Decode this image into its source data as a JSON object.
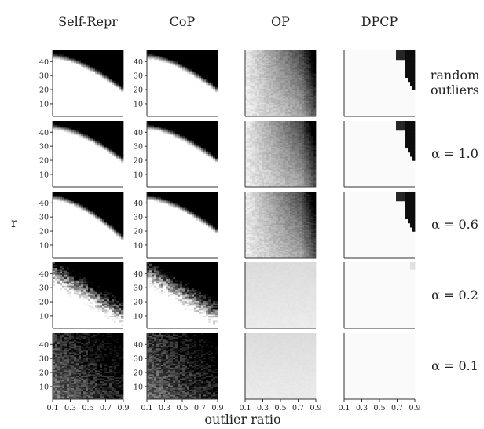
{
  "figure": {
    "xlabel": "outlier ratio",
    "ylabel": "r",
    "column_titles": [
      "Self-Repr",
      "CoP",
      "OP",
      "DPCP"
    ],
    "row_labels": [
      {
        "line1": "random",
        "line2": "outliers"
      },
      {
        "line1": "α = 1.0",
        "line2": ""
      },
      {
        "line1": "α = 0.6",
        "line2": ""
      },
      {
        "line1": "α = 0.2",
        "line2": ""
      },
      {
        "line1": "α = 0.1",
        "line2": ""
      }
    ],
    "x_ticks": [
      "0.1",
      "0.3",
      "0.5",
      "0.7",
      "0.9"
    ],
    "y_ticks": [
      "40",
      "30",
      "20",
      "10"
    ],
    "colors": {
      "low": "#ffffff",
      "high": "#000000"
    }
  },
  "chart_data": {
    "type": "heatmap",
    "grid": false,
    "x_axis": {
      "label": "outlier ratio",
      "range": [
        0.1,
        0.9
      ],
      "ticks": [
        0.1,
        0.3,
        0.5,
        0.7,
        0.9
      ]
    },
    "y_axis": {
      "label": "r",
      "range": [
        1,
        48
      ],
      "ticks": [
        10,
        20,
        30,
        40
      ]
    },
    "colormap": "white (low) to black (high)",
    "columns": [
      "Self-Repr",
      "CoP",
      "OP",
      "DPCP"
    ],
    "rows": [
      "random outliers",
      "α = 1.0",
      "α = 0.6",
      "α = 0.2",
      "α = 0.1"
    ],
    "panels": [
      {
        "row": "random outliers",
        "method": "Self-Repr",
        "pattern": "dark region above a curved boundary; boundary falls from r≈44 at ratio 0.1 to r≈20 at ratio 0.9"
      },
      {
        "row": "random outliers",
        "method": "CoP",
        "pattern": "dark region above a curved boundary; boundary falls from r≈44 at ratio 0.1 to r≈20 at ratio 0.9"
      },
      {
        "row": "random outliers",
        "method": "OP",
        "pattern": "gradual gray gradient, darkening with r and with outlier ratio"
      },
      {
        "row": "random outliers",
        "method": "DPCP",
        "pattern": "almost all white; dark only in the top-right corner (ratio ≥ 0.8, r ≥ 25)"
      },
      {
        "row": "α = 1.0",
        "method": "Self-Repr",
        "pattern": "dark region above a curved boundary; boundary falls from r≈44 to r≈20"
      },
      {
        "row": "α = 1.0",
        "method": "CoP",
        "pattern": "dark region above a curved boundary; boundary falls from r≈44 to r≈20"
      },
      {
        "row": "α = 1.0",
        "method": "OP",
        "pattern": "gray gradient, darker at high r and high ratio"
      },
      {
        "row": "α = 1.0",
        "method": "DPCP",
        "pattern": "almost all white; dark only in the top-right corner"
      },
      {
        "row": "α = 0.6",
        "method": "Self-Repr",
        "pattern": "dark region above a curved boundary; boundary falls from r≈44 to r≈15"
      },
      {
        "row": "α = 0.6",
        "method": "CoP",
        "pattern": "dark region above a curved boundary; boundary falls from r≈44 to r≈22"
      },
      {
        "row": "α = 0.6",
        "method": "OP",
        "pattern": "gray gradient, darker at high r and high ratio"
      },
      {
        "row": "α = 0.6",
        "method": "DPCP",
        "pattern": "almost all white; dark only in the top-right corner"
      },
      {
        "row": "α = 0.2",
        "method": "Self-Repr",
        "pattern": "mostly dark with a noisy boundary; white only at low r and low ratio"
      },
      {
        "row": "α = 0.2",
        "method": "CoP",
        "pattern": "mostly dark with a noisy boundary; white only at low r and low ratio"
      },
      {
        "row": "α = 0.2",
        "method": "OP",
        "pattern": "nearly uniform very light gray"
      },
      {
        "row": "α = 0.2",
        "method": "DPCP",
        "pattern": "nearly all white"
      },
      {
        "row": "α = 0.1",
        "method": "Self-Repr",
        "pattern": "almost entirely dark gray/black with noise"
      },
      {
        "row": "α = 0.1",
        "method": "CoP",
        "pattern": "almost entirely dark gray/black with noise"
      },
      {
        "row": "α = 0.1",
        "method": "OP",
        "pattern": "nearly uniform very light gray"
      },
      {
        "row": "α = 0.1",
        "method": "DPCP",
        "pattern": "nearly all white"
      }
    ]
  }
}
